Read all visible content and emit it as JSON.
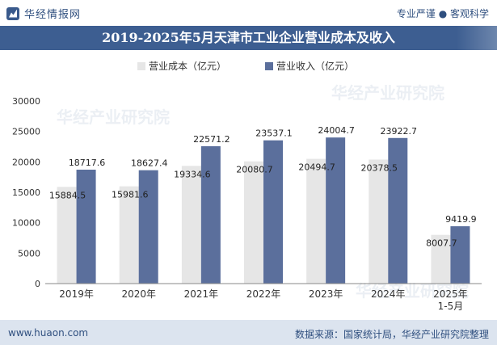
{
  "header": {
    "brand_name": "华经情报网",
    "tagline": "专业严谨 ● 客观科学"
  },
  "title": "2019-2025年5月天津市工业企业营业成本及收入",
  "footer": {
    "url": "www.huaon.com",
    "source": "数据来源：国家统计局，华经产业研究院整理"
  },
  "icons": {
    "brand": "chart-logo-icon"
  },
  "chart_data": {
    "type": "bar",
    "categories": [
      "2019年",
      "2020年",
      "2021年",
      "2022年",
      "2023年",
      "2024年",
      "2025年\n1-5月"
    ],
    "series": [
      {
        "name": "营业成本（亿元）",
        "color": "#e6e6e6",
        "values": [
          15884.5,
          15981.6,
          19334.6,
          20080.7,
          20494.7,
          20378.5,
          8007.7
        ]
      },
      {
        "name": "营业收入（亿元）",
        "color": "#5b6f9c",
        "values": [
          18717.6,
          18627.4,
          22571.2,
          23537.1,
          24004.7,
          23922.7,
          9419.9
        ]
      }
    ],
    "ylim": [
      0,
      30000
    ],
    "yticks": [
      0,
      5000,
      10000,
      15000,
      20000,
      25000,
      30000
    ],
    "legend": "top-left",
    "grid": false
  }
}
